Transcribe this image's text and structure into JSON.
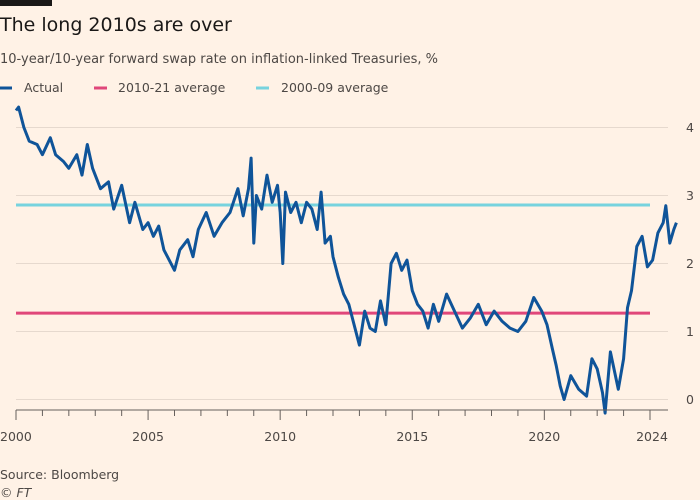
{
  "header": {
    "title": "The long 2010s are over",
    "subtitle": "10-year/10-year forward swap rate on inflation-linked Treasuries, %"
  },
  "legend": [
    {
      "label": "Actual",
      "color": "#0f5499"
    },
    {
      "label": "2010-21 average",
      "color": "#e0477a"
    },
    {
      "label": "2000-09 average",
      "color": "#77d3de"
    }
  ],
  "footer": {
    "source": "Source: Bloomberg",
    "copyright": "© FT"
  },
  "chart_data": {
    "type": "line",
    "title": "The long 2010s are over",
    "subtitle": "10-year/10-year forward swap rate on inflation-linked Treasuries, %",
    "xlabel": "",
    "ylabel": "",
    "xlim": [
      2000.0,
      2024.0
    ],
    "ylim": [
      -0.2,
      4.3
    ],
    "x_ticks": [
      "2000",
      "2005",
      "2010",
      "2015",
      "2020",
      "2024"
    ],
    "x_tick_values": [
      2000,
      2005,
      2010,
      2015,
      2020,
      2024
    ],
    "y_ticks": [
      0,
      1,
      2,
      3,
      4
    ],
    "y_axis_side": "right",
    "grid": true,
    "legend_position": "top-left",
    "reference_lines": [
      {
        "name": "2010-21 average",
        "value": 1.27,
        "color": "#e0477a"
      },
      {
        "name": "2000-09 average",
        "value": 2.86,
        "color": "#77d3de"
      }
    ],
    "series": [
      {
        "name": "Actual",
        "color": "#0f5499",
        "points": [
          [
            2000.0,
            4.25
          ],
          [
            2000.1,
            4.3
          ],
          [
            2000.3,
            4.0
          ],
          [
            2000.5,
            3.8
          ],
          [
            2000.8,
            3.75
          ],
          [
            2001.0,
            3.6
          ],
          [
            2001.3,
            3.85
          ],
          [
            2001.5,
            3.6
          ],
          [
            2001.8,
            3.5
          ],
          [
            2002.0,
            3.4
          ],
          [
            2002.3,
            3.6
          ],
          [
            2002.5,
            3.3
          ],
          [
            2002.7,
            3.75
          ],
          [
            2002.9,
            3.4
          ],
          [
            2003.2,
            3.1
          ],
          [
            2003.5,
            3.2
          ],
          [
            2003.7,
            2.8
          ],
          [
            2004.0,
            3.15
          ],
          [
            2004.3,
            2.6
          ],
          [
            2004.5,
            2.9
          ],
          [
            2004.8,
            2.5
          ],
          [
            2005.0,
            2.6
          ],
          [
            2005.2,
            2.4
          ],
          [
            2005.4,
            2.55
          ],
          [
            2005.6,
            2.2
          ],
          [
            2005.8,
            2.05
          ],
          [
            2006.0,
            1.9
          ],
          [
            2006.2,
            2.2
          ],
          [
            2006.5,
            2.35
          ],
          [
            2006.7,
            2.1
          ],
          [
            2006.9,
            2.5
          ],
          [
            2007.2,
            2.75
          ],
          [
            2007.5,
            2.4
          ],
          [
            2007.8,
            2.6
          ],
          [
            2008.1,
            2.75
          ],
          [
            2008.4,
            3.1
          ],
          [
            2008.6,
            2.7
          ],
          [
            2008.8,
            3.1
          ],
          [
            2008.9,
            3.55
          ],
          [
            2009.0,
            2.3
          ],
          [
            2009.1,
            3.0
          ],
          [
            2009.3,
            2.8
          ],
          [
            2009.5,
            3.3
          ],
          [
            2009.7,
            2.9
          ],
          [
            2009.9,
            3.15
          ],
          [
            2010.0,
            2.75
          ],
          [
            2010.1,
            2.0
          ],
          [
            2010.2,
            3.05
          ],
          [
            2010.4,
            2.75
          ],
          [
            2010.6,
            2.9
          ],
          [
            2010.8,
            2.6
          ],
          [
            2011.0,
            2.9
          ],
          [
            2011.2,
            2.8
          ],
          [
            2011.4,
            2.5
          ],
          [
            2011.55,
            3.05
          ],
          [
            2011.7,
            2.3
          ],
          [
            2011.9,
            2.4
          ],
          [
            2012.0,
            2.1
          ],
          [
            2012.2,
            1.8
          ],
          [
            2012.4,
            1.55
          ],
          [
            2012.6,
            1.4
          ],
          [
            2012.8,
            1.1
          ],
          [
            2013.0,
            0.8
          ],
          [
            2013.2,
            1.3
          ],
          [
            2013.4,
            1.05
          ],
          [
            2013.6,
            1.0
          ],
          [
            2013.8,
            1.45
          ],
          [
            2014.0,
            1.1
          ],
          [
            2014.2,
            2.0
          ],
          [
            2014.4,
            2.15
          ],
          [
            2014.6,
            1.9
          ],
          [
            2014.8,
            2.05
          ],
          [
            2015.0,
            1.6
          ],
          [
            2015.2,
            1.4
          ],
          [
            2015.4,
            1.3
          ],
          [
            2015.6,
            1.05
          ],
          [
            2015.8,
            1.4
          ],
          [
            2016.0,
            1.15
          ],
          [
            2016.3,
            1.55
          ],
          [
            2016.6,
            1.3
          ],
          [
            2016.9,
            1.05
          ],
          [
            2017.2,
            1.2
          ],
          [
            2017.5,
            1.4
          ],
          [
            2017.8,
            1.1
          ],
          [
            2018.1,
            1.3
          ],
          [
            2018.4,
            1.15
          ],
          [
            2018.7,
            1.05
          ],
          [
            2019.0,
            1.0
          ],
          [
            2019.3,
            1.15
          ],
          [
            2019.6,
            1.5
          ],
          [
            2019.9,
            1.3
          ],
          [
            2020.1,
            1.1
          ],
          [
            2020.3,
            0.75
          ],
          [
            2020.45,
            0.5
          ],
          [
            2020.6,
            0.2
          ],
          [
            2020.75,
            0.0
          ],
          [
            2021.0,
            0.35
          ],
          [
            2021.3,
            0.15
          ],
          [
            2021.6,
            0.05
          ],
          [
            2021.8,
            0.6
          ],
          [
            2022.0,
            0.45
          ],
          [
            2022.2,
            0.1
          ],
          [
            2022.3,
            -0.2
          ],
          [
            2022.5,
            0.7
          ],
          [
            2022.8,
            0.15
          ],
          [
            2023.0,
            0.6
          ],
          [
            2023.15,
            1.35
          ],
          [
            2023.3,
            1.6
          ],
          [
            2023.5,
            2.25
          ],
          [
            2023.7,
            2.4
          ],
          [
            2023.9,
            1.95
          ],
          [
            2024.1,
            2.05
          ],
          [
            2024.3,
            2.45
          ],
          [
            2024.5,
            2.6
          ],
          [
            2024.6,
            2.85
          ],
          [
            2024.75,
            2.3
          ],
          [
            2024.9,
            2.5
          ],
          [
            2025.0,
            2.6
          ]
        ]
      }
    ]
  }
}
